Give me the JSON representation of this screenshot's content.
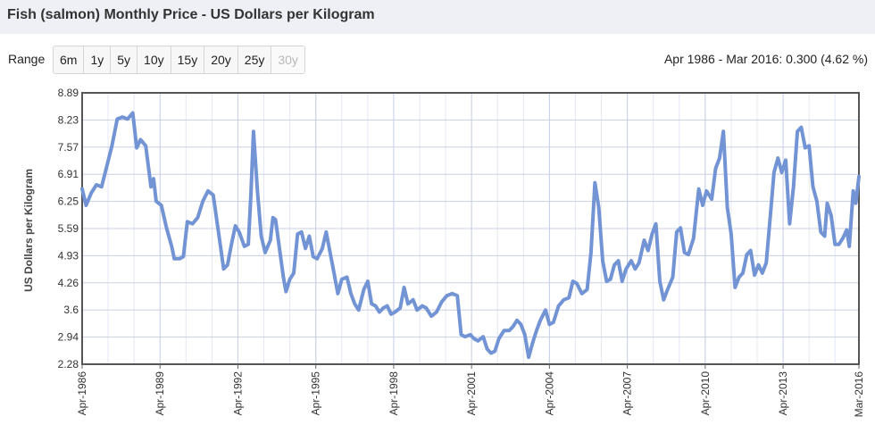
{
  "header": {
    "title": "Fish (salmon) Monthly Price - US Dollars per Kilogram"
  },
  "toolbar": {
    "range_label": "Range",
    "ranges": [
      "6m",
      "1y",
      "5y",
      "10y",
      "15y",
      "20y",
      "25y",
      "30y"
    ],
    "disabled_range": "30y",
    "summary": "Apr 1986 - Mar 2016: 0.300 (4.62 %)"
  },
  "colors": {
    "line": "#7394d4",
    "grid": "#c8d0e6",
    "title_bar": "#eef0f6"
  },
  "chart_data": {
    "type": "line",
    "ylabel": "US Dollars per Kilogram",
    "ylim": [
      2.28,
      8.89
    ],
    "y_ticks": [
      "8.89",
      "8.23",
      "7.57",
      "6.91",
      "6.25",
      "5.59",
      "4.93",
      "4.26",
      "3.6",
      "2.94",
      "2.28"
    ],
    "x_ticks": [
      "Apr-1986",
      "Apr-1989",
      "Apr-1992",
      "Apr-1995",
      "Apr-1998",
      "Apr-2001",
      "Apr-2004",
      "Apr-2007",
      "Apr-2010",
      "Apr-2013",
      "Mar-2016"
    ],
    "grid": "on",
    "series": [
      {
        "values": [
          [
            1986.25,
            6.55
          ],
          [
            1986.4,
            6.15
          ],
          [
            1986.6,
            6.45
          ],
          [
            1986.8,
            6.65
          ],
          [
            1987.0,
            6.6
          ],
          [
            1987.2,
            7.1
          ],
          [
            1987.4,
            7.6
          ],
          [
            1987.6,
            8.25
          ],
          [
            1987.8,
            8.3
          ],
          [
            1988.0,
            8.25
          ],
          [
            1988.2,
            8.4
          ],
          [
            1988.35,
            7.55
          ],
          [
            1988.5,
            7.75
          ],
          [
            1988.7,
            7.6
          ],
          [
            1988.9,
            6.6
          ],
          [
            1989.0,
            6.8
          ],
          [
            1989.1,
            6.25
          ],
          [
            1989.3,
            6.15
          ],
          [
            1989.5,
            5.6
          ],
          [
            1989.7,
            5.15
          ],
          [
            1989.8,
            4.85
          ],
          [
            1990.0,
            4.85
          ],
          [
            1990.15,
            4.9
          ],
          [
            1990.3,
            5.75
          ],
          [
            1990.5,
            5.7
          ],
          [
            1990.7,
            5.85
          ],
          [
            1990.9,
            6.25
          ],
          [
            1991.1,
            6.5
          ],
          [
            1991.3,
            6.4
          ],
          [
            1991.5,
            5.5
          ],
          [
            1991.7,
            4.6
          ],
          [
            1991.85,
            4.7
          ],
          [
            1992.0,
            5.2
          ],
          [
            1992.15,
            5.65
          ],
          [
            1992.3,
            5.5
          ],
          [
            1992.5,
            5.15
          ],
          [
            1992.65,
            5.2
          ],
          [
            1992.75,
            6.4
          ],
          [
            1992.85,
            7.95
          ],
          [
            1993.0,
            6.5
          ],
          [
            1993.15,
            5.4
          ],
          [
            1993.3,
            5.0
          ],
          [
            1993.5,
            5.3
          ],
          [
            1993.6,
            5.85
          ],
          [
            1993.7,
            5.8
          ],
          [
            1993.85,
            5.1
          ],
          [
            1994.0,
            4.4
          ],
          [
            1994.1,
            4.05
          ],
          [
            1994.25,
            4.35
          ],
          [
            1994.4,
            4.5
          ],
          [
            1994.55,
            5.45
          ],
          [
            1994.7,
            5.5
          ],
          [
            1994.85,
            5.1
          ],
          [
            1995.0,
            5.4
          ],
          [
            1995.15,
            4.9
          ],
          [
            1995.3,
            4.85
          ],
          [
            1995.5,
            5.1
          ],
          [
            1995.65,
            5.5
          ],
          [
            1995.8,
            5.0
          ],
          [
            1995.95,
            4.5
          ],
          [
            1996.1,
            4.0
          ],
          [
            1996.25,
            4.35
          ],
          [
            1996.45,
            4.4
          ],
          [
            1996.6,
            4.0
          ],
          [
            1996.75,
            3.75
          ],
          [
            1996.9,
            3.6
          ],
          [
            1997.1,
            4.1
          ],
          [
            1997.25,
            4.3
          ],
          [
            1997.4,
            3.75
          ],
          [
            1997.55,
            3.7
          ],
          [
            1997.7,
            3.55
          ],
          [
            1997.85,
            3.65
          ],
          [
            1998.0,
            3.7
          ],
          [
            1998.15,
            3.5
          ],
          [
            1998.3,
            3.55
          ],
          [
            1998.5,
            3.65
          ],
          [
            1998.65,
            4.15
          ],
          [
            1998.8,
            3.75
          ],
          [
            1999.0,
            3.85
          ],
          [
            1999.15,
            3.6
          ],
          [
            1999.35,
            3.7
          ],
          [
            1999.5,
            3.65
          ],
          [
            1999.7,
            3.45
          ],
          [
            1999.9,
            3.55
          ],
          [
            2000.1,
            3.8
          ],
          [
            2000.3,
            3.95
          ],
          [
            2000.5,
            4.0
          ],
          [
            2000.7,
            3.95
          ],
          [
            2000.85,
            3.0
          ],
          [
            2001.0,
            2.95
          ],
          [
            2001.2,
            3.0
          ],
          [
            2001.35,
            2.9
          ],
          [
            2001.5,
            2.85
          ],
          [
            2001.7,
            2.95
          ],
          [
            2001.85,
            2.65
          ],
          [
            2002.0,
            2.55
          ],
          [
            2002.15,
            2.6
          ],
          [
            2002.3,
            2.9
          ],
          [
            2002.5,
            3.1
          ],
          [
            2002.7,
            3.1
          ],
          [
            2002.85,
            3.2
          ],
          [
            2003.0,
            3.35
          ],
          [
            2003.15,
            3.25
          ],
          [
            2003.3,
            3.0
          ],
          [
            2003.45,
            2.45
          ],
          [
            2003.6,
            2.8
          ],
          [
            2003.75,
            3.1
          ],
          [
            2003.9,
            3.35
          ],
          [
            2004.1,
            3.6
          ],
          [
            2004.25,
            3.25
          ],
          [
            2004.4,
            3.3
          ],
          [
            2004.6,
            3.7
          ],
          [
            2004.8,
            3.85
          ],
          [
            2005.0,
            3.9
          ],
          [
            2005.15,
            4.3
          ],
          [
            2005.3,
            4.25
          ],
          [
            2005.5,
            4.0
          ],
          [
            2005.7,
            4.1
          ],
          [
            2005.85,
            5.0
          ],
          [
            2006.0,
            6.7
          ],
          [
            2006.15,
            6.1
          ],
          [
            2006.3,
            4.8
          ],
          [
            2006.45,
            4.3
          ],
          [
            2006.6,
            4.35
          ],
          [
            2006.75,
            4.7
          ],
          [
            2006.9,
            4.8
          ],
          [
            2007.05,
            4.3
          ],
          [
            2007.2,
            4.6
          ],
          [
            2007.4,
            4.8
          ],
          [
            2007.55,
            4.6
          ],
          [
            2007.7,
            4.75
          ],
          [
            2007.9,
            5.3
          ],
          [
            2008.05,
            5.05
          ],
          [
            2008.2,
            5.45
          ],
          [
            2008.35,
            5.7
          ],
          [
            2008.5,
            4.3
          ],
          [
            2008.65,
            3.85
          ],
          [
            2008.8,
            4.1
          ],
          [
            2009.0,
            4.4
          ],
          [
            2009.15,
            5.5
          ],
          [
            2009.3,
            5.6
          ],
          [
            2009.45,
            5.0
          ],
          [
            2009.6,
            4.95
          ],
          [
            2009.8,
            5.35
          ],
          [
            2010.0,
            6.55
          ],
          [
            2010.15,
            6.15
          ],
          [
            2010.3,
            6.5
          ],
          [
            2010.5,
            6.3
          ],
          [
            2010.65,
            7.05
          ],
          [
            2010.8,
            7.3
          ],
          [
            2010.95,
            7.95
          ],
          [
            2011.1,
            6.1
          ],
          [
            2011.25,
            5.45
          ],
          [
            2011.4,
            4.15
          ],
          [
            2011.55,
            4.4
          ],
          [
            2011.7,
            4.5
          ],
          [
            2011.85,
            4.95
          ],
          [
            2012.0,
            5.05
          ],
          [
            2012.15,
            4.45
          ],
          [
            2012.3,
            4.7
          ],
          [
            2012.45,
            4.5
          ],
          [
            2012.6,
            4.75
          ],
          [
            2012.75,
            5.85
          ],
          [
            2012.9,
            6.95
          ],
          [
            2013.05,
            7.3
          ],
          [
            2013.2,
            6.95
          ],
          [
            2013.35,
            7.25
          ],
          [
            2013.5,
            5.7
          ],
          [
            2013.65,
            6.6
          ],
          [
            2013.8,
            7.95
          ],
          [
            2013.95,
            8.05
          ],
          [
            2014.1,
            7.55
          ],
          [
            2014.25,
            7.6
          ],
          [
            2014.4,
            6.6
          ],
          [
            2014.55,
            6.25
          ],
          [
            2014.7,
            5.5
          ],
          [
            2014.85,
            5.4
          ],
          [
            2014.95,
            6.2
          ],
          [
            2015.1,
            5.9
          ],
          [
            2015.25,
            5.2
          ],
          [
            2015.4,
            5.2
          ],
          [
            2015.55,
            5.35
          ],
          [
            2015.7,
            5.55
          ],
          [
            2015.8,
            5.15
          ],
          [
            2015.95,
            6.5
          ],
          [
            2016.05,
            6.2
          ],
          [
            2016.17,
            6.85
          ]
        ]
      }
    ]
  }
}
